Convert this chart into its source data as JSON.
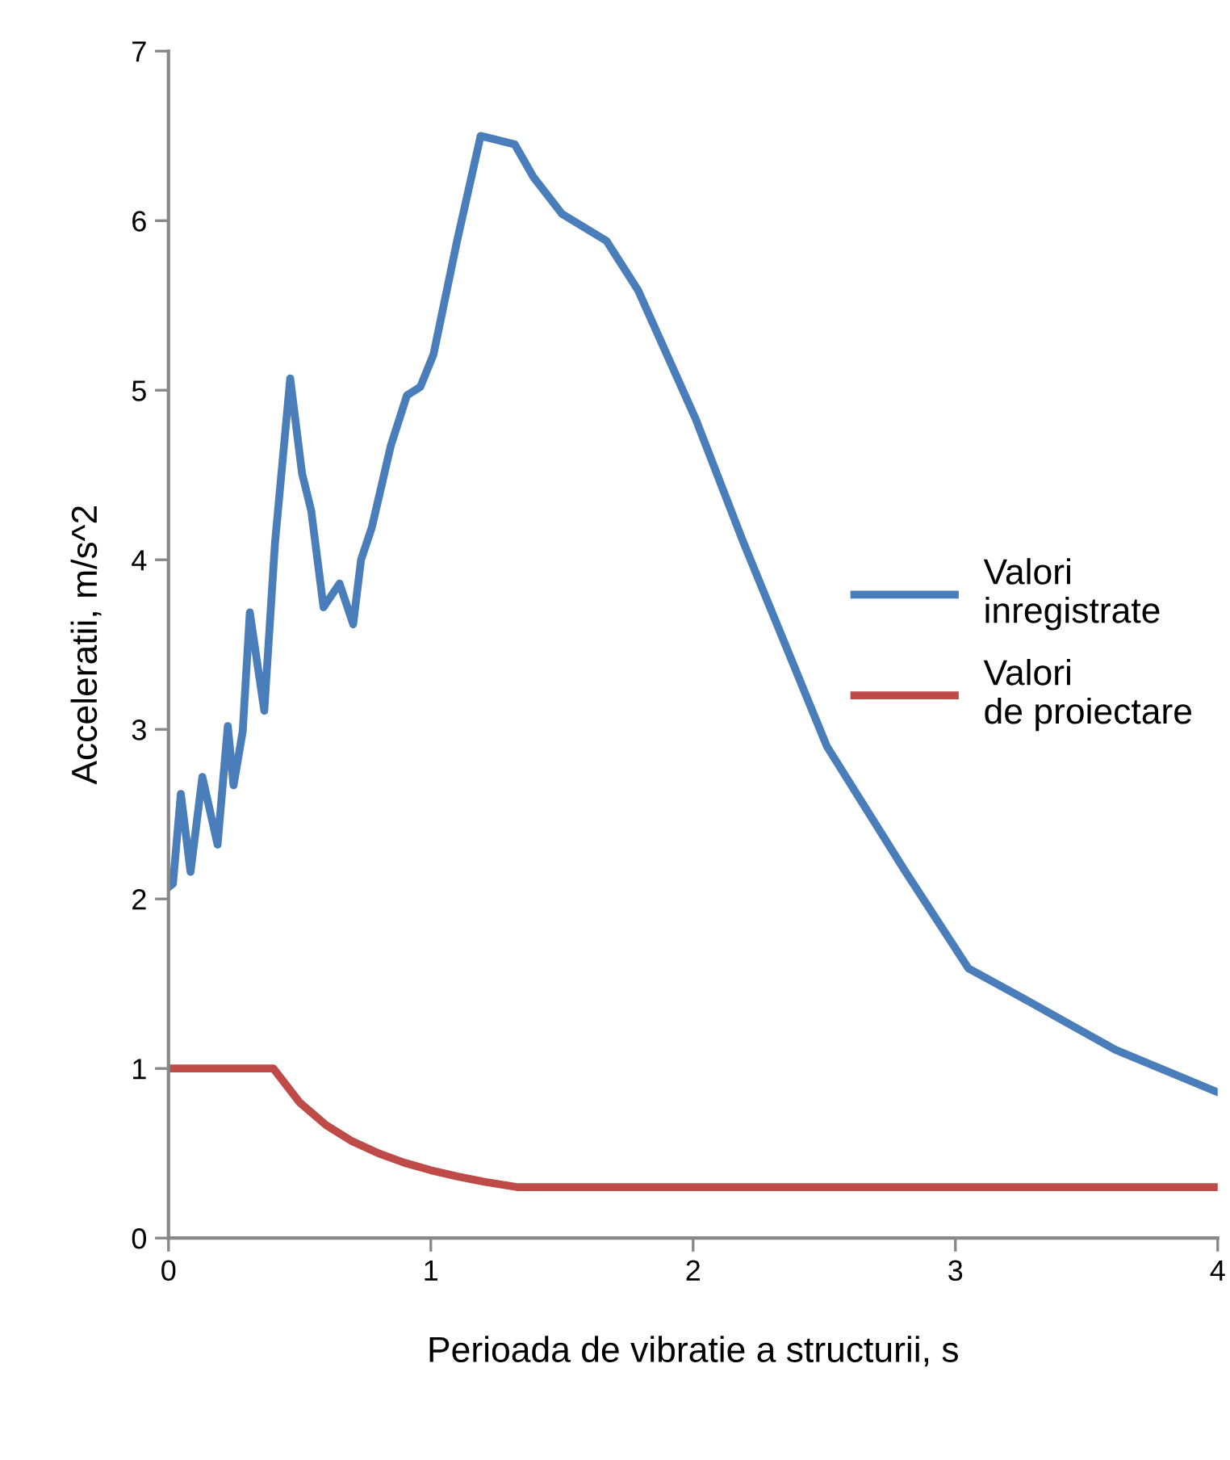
{
  "chart_data": {
    "type": "line",
    "xlabel": "Perioada de vibratie a structurii, s",
    "ylabel": "Acceleratii, m/s^2",
    "xlim": [
      0,
      4
    ],
    "xticks": [
      0,
      1,
      2,
      3,
      4
    ],
    "ylim": [
      0,
      7
    ],
    "yticks": [
      0,
      1,
      2,
      3,
      4,
      5,
      6,
      7
    ],
    "grid": false,
    "legend": "right",
    "marker": "none",
    "line_style": "solid",
    "series": [
      {
        "name": "Valori inregistrate",
        "color": "#4a7ebb",
        "x": [
          0,
          0.017,
          0.047,
          0.084,
          0.129,
          0.187,
          0.226,
          0.248,
          0.283,
          0.31,
          0.365,
          0.406,
          0.464,
          0.509,
          0.544,
          0.591,
          0.652,
          0.704,
          0.734,
          0.775,
          0.847,
          0.909,
          0.96,
          1.01,
          1.1,
          1.19,
          1.32,
          1.39,
          1.5,
          1.67,
          1.79,
          2.01,
          2.19,
          2.51,
          2.81,
          3.05,
          3.24,
          3.61,
          4.0
        ],
        "values": [
          2.07,
          2.09,
          2.62,
          2.16,
          2.72,
          2.32,
          3.02,
          2.67,
          2.99,
          3.69,
          3.11,
          4.1,
          5.07,
          4.51,
          4.29,
          3.72,
          3.86,
          3.62,
          4.0,
          4.19,
          4.67,
          4.97,
          5.02,
          5.21,
          5.88,
          6.5,
          6.45,
          6.26,
          6.04,
          5.88,
          5.59,
          4.83,
          4.11,
          2.9,
          2.16,
          1.59,
          1.43,
          1.11,
          0.86
        ]
      },
      {
        "name": "Valori de proiectare",
        "color": "#be4b48",
        "x": [
          0,
          0.4,
          0.5,
          0.6,
          0.7,
          0.8,
          0.9,
          1.0,
          1.1,
          1.2,
          1.333,
          4.0
        ],
        "values": [
          1.0,
          1.0,
          0.8,
          0.667,
          0.571,
          0.5,
          0.444,
          0.4,
          0.364,
          0.333,
          0.3,
          0.3
        ]
      }
    ]
  }
}
